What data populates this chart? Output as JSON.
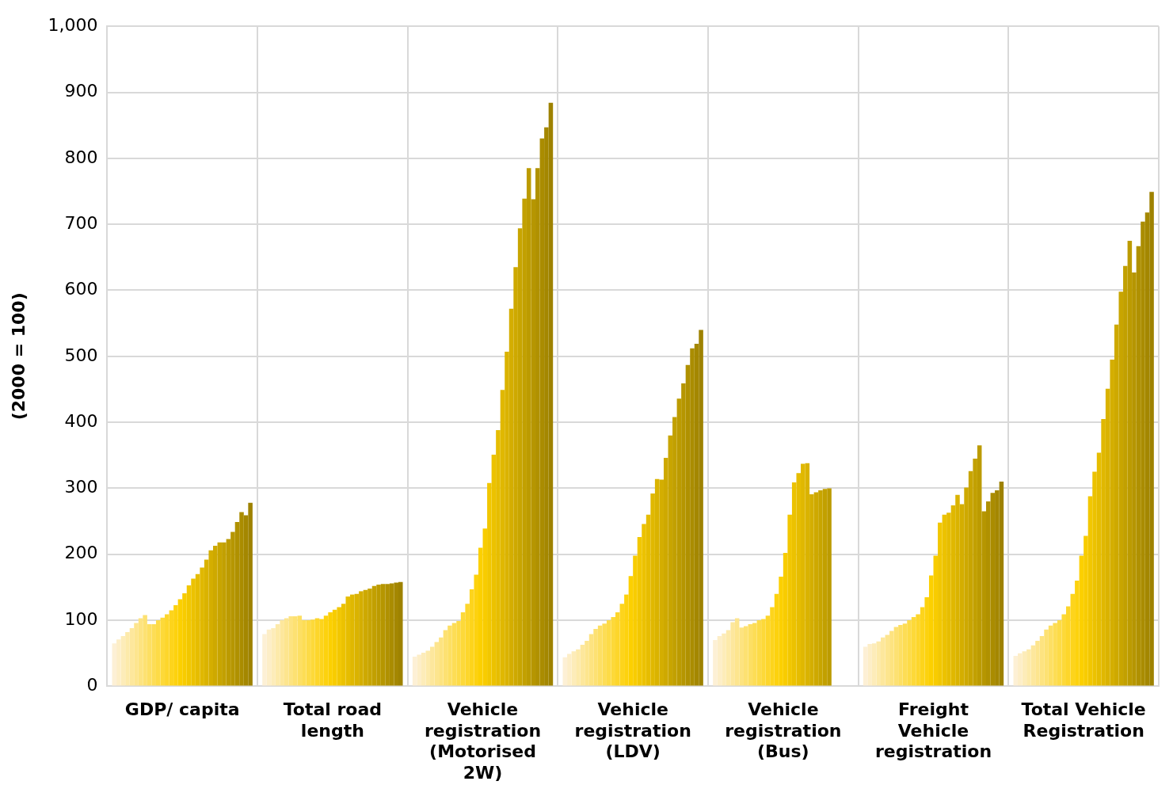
{
  "chart_data": {
    "type": "bar",
    "ylabel": "(2000 = 100)",
    "categories": [
      "GDP/ capita",
      "Total road length",
      "Vehicle registration (Motorised 2W)",
      "Vehicle registration (LDV)",
      "Vehicle registration (Bus)",
      "Freight Vehicle registration",
      "Total Vehicle Registration"
    ],
    "ylim": [
      0,
      1000
    ],
    "yticks": [
      0,
      100,
      200,
      300,
      400,
      500,
      600,
      700,
      800,
      900,
      {
        "value": 1000,
        "label": "1,000"
      }
    ],
    "grid": true,
    "legend": false,
    "series": [
      {
        "color": "#fdf0d5",
        "values": [
          65,
          79,
          45,
          44,
          70,
          60,
          46
        ]
      },
      {
        "color": "#fdeec7",
        "values": [
          71,
          86,
          48,
          49,
          76,
          64,
          50
        ]
      },
      {
        "color": "#fdecb9",
        "values": [
          76,
          88,
          51,
          53,
          80,
          65,
          53
        ]
      },
      {
        "color": "#fdeaaa",
        "values": [
          82,
          94,
          54,
          56,
          85,
          68,
          56
        ]
      },
      {
        "color": "#fde79c",
        "values": [
          88,
          100,
          60,
          63,
          97,
          74,
          62
        ]
      },
      {
        "color": "#fde58e",
        "values": [
          96,
          103,
          67,
          69,
          103,
          78,
          69
        ]
      },
      {
        "color": "#fde380",
        "values": [
          103,
          106,
          74,
          79,
          89,
          84,
          76
        ]
      },
      {
        "color": "#fde172",
        "values": [
          108,
          106,
          85,
          87,
          91,
          90,
          86
        ]
      },
      {
        "color": "#fddf63",
        "values": [
          94,
          107,
          92,
          92,
          94,
          93,
          92
        ]
      },
      {
        "color": "#fddd55",
        "values": [
          94,
          100,
          96,
          95,
          96,
          95,
          96
        ]
      },
      {
        "color": "#fddb47",
        "values": [
          100,
          100,
          99,
          100,
          100,
          100,
          100
        ]
      },
      {
        "color": "#fdd939",
        "values": [
          104,
          101,
          112,
          105,
          102,
          105,
          109
        ]
      },
      {
        "color": "#fdd62b",
        "values": [
          109,
          103,
          125,
          112,
          107,
          109,
          121
        ]
      },
      {
        "color": "#fdd41c",
        "values": [
          115,
          102,
          147,
          125,
          120,
          120,
          140
        ]
      },
      {
        "color": "#fdd20e",
        "values": [
          123,
          107,
          169,
          139,
          140,
          135,
          160
        ]
      },
      {
        "color": "#fcd000",
        "values": [
          132,
          112,
          210,
          167,
          166,
          168,
          198
        ]
      },
      {
        "color": "#f8cc00",
        "values": [
          141,
          116,
          239,
          198,
          202,
          198,
          228
        ]
      },
      {
        "color": "#f2c700",
        "values": [
          153,
          120,
          308,
          226,
          260,
          248,
          288
        ]
      },
      {
        "color": "#ecc200",
        "values": [
          163,
          125,
          351,
          246,
          309,
          260,
          325
        ]
      },
      {
        "color": "#e6bd00",
        "values": [
          170,
          136,
          388,
          260,
          323,
          263,
          354
        ]
      },
      {
        "color": "#e0b800",
        "values": [
          180,
          139,
          449,
          292,
          337,
          274,
          405
        ]
      },
      {
        "color": "#dab300",
        "values": [
          192,
          140,
          507,
          314,
          338,
          290,
          451
        ]
      },
      {
        "color": "#d4ae00",
        "values": [
          206,
          144,
          572,
          313,
          291,
          276,
          495
        ]
      },
      {
        "color": "#cea900",
        "values": [
          213,
          146,
          635,
          346,
          294,
          301,
          548
        ]
      },
      {
        "color": "#c8a500",
        "values": [
          218,
          148,
          694,
          380,
          297,
          326,
          598
        ]
      },
      {
        "color": "#c2a000",
        "values": [
          218,
          152,
          739,
          408,
          299,
          345,
          637
        ]
      },
      {
        "color": "#bc9b00",
        "values": [
          223,
          154,
          785,
          436,
          300,
          365,
          675
        ]
      },
      {
        "color": "#b69600",
        "values": [
          234,
          155,
          738,
          459,
          null,
          265,
          627
        ]
      },
      {
        "color": "#b09100",
        "values": [
          249,
          155,
          785,
          487,
          null,
          280,
          667
        ]
      },
      {
        "color": "#aa8c00",
        "values": [
          264,
          156,
          830,
          512,
          null,
          293,
          704
        ]
      },
      {
        "color": "#a48700",
        "values": [
          259,
          157,
          847,
          519,
          null,
          297,
          718
        ]
      },
      {
        "color": "#9e8200",
        "values": [
          278,
          158,
          884,
          540,
          null,
          310,
          749
        ]
      }
    ]
  }
}
